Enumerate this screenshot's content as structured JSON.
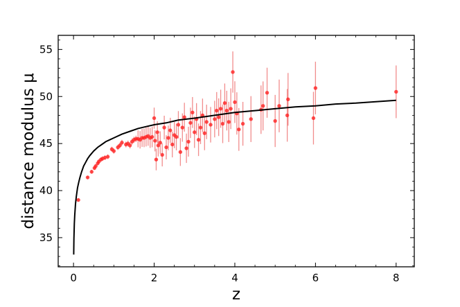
{
  "chart_data": {
    "type": "scatter",
    "xlabel": "z",
    "ylabel": "distance  modulus  μ",
    "xlim": [
      -0.38,
      8.45
    ],
    "ylim": [
      31.9,
      56.5
    ],
    "x_ticks": [
      0,
      2,
      4,
      6,
      8
    ],
    "y_ticks": [
      35,
      40,
      45,
      50,
      55
    ],
    "grid": false,
    "colors": {
      "points": "#ff2222",
      "error_bars": "#f08080",
      "curve": "#000000"
    },
    "curve_model": {
      "name": "",
      "x": [
        0.005,
        0.01,
        0.02,
        0.03,
        0.05,
        0.07,
        0.1,
        0.13,
        0.16,
        0.2,
        0.25,
        0.3,
        0.35,
        0.4,
        0.5,
        0.6,
        0.7,
        0.8,
        0.9,
        1.0,
        1.2,
        1.4,
        1.6,
        1.8,
        2.0,
        2.3,
        2.6,
        3.0,
        3.5,
        4.0,
        4.5,
        5.0,
        5.5,
        6.0,
        6.5,
        7.0,
        7.5,
        8.0
      ],
      "y": [
        33.2,
        34.9,
        36.5,
        37.4,
        38.6,
        39.4,
        40.3,
        40.9,
        41.4,
        42.0,
        42.6,
        43.0,
        43.4,
        43.7,
        44.2,
        44.6,
        44.9,
        45.2,
        45.4,
        45.6,
        46.0,
        46.3,
        46.6,
        46.8,
        47.0,
        47.2,
        47.5,
        47.7,
        48.0,
        48.3,
        48.5,
        48.7,
        48.9,
        49.0,
        49.2,
        49.3,
        49.45,
        49.6
      ]
    },
    "series": [
      {
        "name": "",
        "x": [
          0.12,
          0.35,
          0.45,
          0.52,
          0.55,
          0.6,
          0.63,
          0.68,
          0.72,
          0.78,
          0.85,
          0.95,
          1.0,
          1.1,
          1.15,
          1.2,
          1.3,
          1.35,
          1.4,
          1.45,
          1.5,
          1.55,
          1.6,
          1.65,
          1.7,
          1.75,
          1.8,
          1.85,
          1.9,
          1.95,
          2.0,
          2.02,
          2.05,
          2.08,
          2.1,
          2.15,
          2.2,
          2.25,
          2.3,
          2.35,
          2.4,
          2.45,
          2.5,
          2.55,
          2.6,
          2.65,
          2.7,
          2.75,
          2.8,
          2.85,
          2.9,
          2.95,
          3.0,
          3.05,
          3.1,
          3.15,
          3.2,
          3.25,
          3.3,
          3.4,
          3.5,
          3.55,
          3.6,
          3.65,
          3.7,
          3.75,
          3.8,
          3.85,
          3.9,
          3.95,
          4.0,
          4.05,
          4.1,
          4.2,
          4.4,
          4.65,
          4.7,
          4.8,
          5.0,
          5.1,
          5.3,
          5.32,
          5.95,
          6.0,
          8.0
        ],
        "y": [
          39.0,
          41.4,
          42.0,
          42.4,
          42.6,
          42.9,
          43.1,
          43.3,
          43.4,
          43.5,
          43.6,
          44.4,
          44.2,
          44.6,
          44.8,
          45.1,
          44.9,
          45.0,
          44.8,
          45.2,
          45.4,
          45.5,
          45.5,
          45.4,
          45.6,
          45.6,
          45.7,
          45.8,
          45.6,
          45.7,
          47.7,
          45.3,
          43.3,
          46.2,
          44.8,
          45.1,
          43.8,
          46.7,
          44.6,
          45.6,
          46.4,
          44.9,
          45.9,
          45.7,
          47.0,
          44.1,
          46.7,
          47.8,
          44.5,
          45.2,
          47.2,
          48.3,
          46.2,
          47.6,
          45.4,
          46.7,
          48.0,
          46.1,
          47.3,
          47.0,
          47.6,
          48.5,
          47.8,
          48.7,
          47.1,
          49.3,
          48.5,
          47.3,
          48.7,
          52.6,
          49.4,
          48.2,
          46.5,
          47.1,
          47.6,
          48.6,
          49.0,
          50.4,
          47.4,
          49.0,
          48.0,
          49.7,
          47.7,
          50.9,
          50.5
        ]
      }
    ]
  }
}
